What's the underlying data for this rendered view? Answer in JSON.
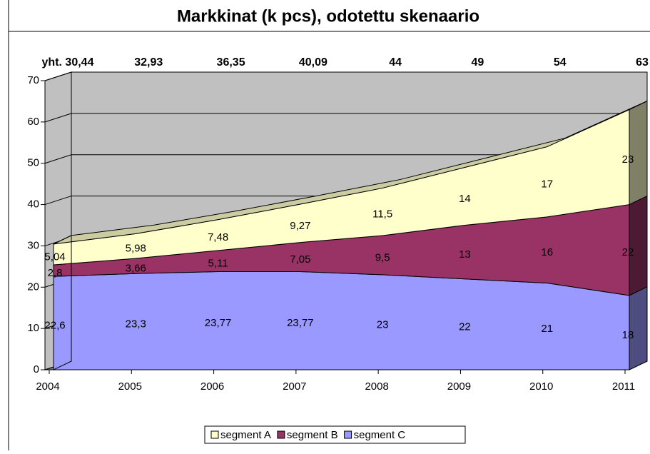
{
  "chart_data": {
    "type": "area3d",
    "title": "Markkinat (k pcs), odotettu skenaario",
    "categories": [
      "2004",
      "2005",
      "2006",
      "2007",
      "2008",
      "2009",
      "2010",
      "2011"
    ],
    "series": [
      {
        "name": "segment C",
        "color": "#9999ff",
        "values": [
          22.6,
          23.3,
          23.77,
          23.77,
          23,
          22,
          21,
          18
        ],
        "value_labels": [
          "22,6",
          "23,3",
          "23,77",
          "23,77",
          "23",
          "22",
          "21",
          "18"
        ]
      },
      {
        "name": "segment B",
        "color": "#993366",
        "values": [
          2.8,
          3.66,
          5.11,
          7.05,
          9.5,
          13,
          16,
          22
        ],
        "value_labels": [
          "2,8",
          "3,66",
          "5,11",
          "7,05",
          "9,5",
          "13",
          "16",
          "22"
        ]
      },
      {
        "name": "segment A",
        "color": "#ffffcc",
        "values": [
          5.04,
          5.98,
          7.48,
          9.27,
          11.5,
          14,
          17,
          23
        ],
        "value_labels": [
          "5,04",
          "5,98",
          "7,48",
          "9,27",
          "11,5",
          "14",
          "17",
          "23"
        ]
      }
    ],
    "annotations": [
      "yht. 30,44",
      "32,93",
      "36,35",
      "40,09",
      "44",
      "49",
      "54",
      "63"
    ],
    "stacked": true,
    "grid": true,
    "legend": "bottom",
    "ylim": [
      0,
      70
    ],
    "yticks": [
      0,
      10,
      20,
      30,
      40,
      50,
      60,
      70
    ]
  }
}
